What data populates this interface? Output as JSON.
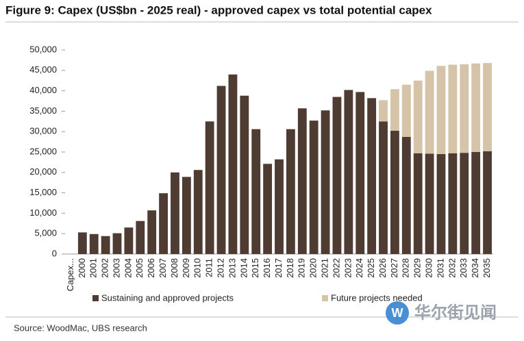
{
  "chart_data": {
    "type": "stacked-bar",
    "title": "Figure 9: Capex (US$bn - 2025 real) - approved capex vs total potential capex",
    "categories": [
      "Capex...",
      "2000",
      "2001",
      "2002",
      "2003",
      "2004",
      "2005",
      "2006",
      "2007",
      "2008",
      "2009",
      "2010",
      "2011",
      "2012",
      "2013",
      "2014",
      "2015",
      "2016",
      "2017",
      "2018",
      "2019",
      "2020",
      "2021",
      "2022",
      "2023",
      "2024",
      "2025",
      "2026",
      "2027",
      "2028",
      "2029",
      "2030",
      "2031",
      "2032",
      "2033",
      "2034",
      "2035"
    ],
    "series": [
      {
        "name": "Sustaining and approved projects",
        "color": "#4e3b31",
        "values": [
          null,
          5300,
          4900,
          4400,
          5100,
          6500,
          8100,
          10700,
          14900,
          20000,
          18900,
          20600,
          32500,
          41200,
          44000,
          38800,
          30600,
          22100,
          23200,
          30600,
          35700,
          32700,
          35200,
          38500,
          40200,
          39700,
          38200,
          32500,
          30200,
          28700,
          24700,
          24600,
          24500,
          24700,
          24800,
          25000,
          25200
        ]
      },
      {
        "name": "Future projects needed",
        "color": "#d5c4a7",
        "values": [
          null,
          null,
          null,
          null,
          null,
          null,
          null,
          null,
          null,
          null,
          null,
          null,
          null,
          null,
          null,
          null,
          null,
          null,
          null,
          null,
          null,
          null,
          null,
          null,
          null,
          null,
          null,
          5200,
          10200,
          12800,
          17800,
          20300,
          21600,
          21700,
          21700,
          21700,
          21600
        ]
      }
    ],
    "ylim": [
      0,
      50000
    ],
    "yticks": [
      0,
      {
        "value": 5000,
        "label": "5,000"
      },
      {
        "value": 10000,
        "label": "10,000"
      },
      {
        "value": 15000,
        "label": "15,000"
      },
      {
        "value": 20000,
        "label": "20,000"
      },
      {
        "value": 25000,
        "label": "25,000"
      },
      {
        "value": 30000,
        "label": "30,000"
      },
      {
        "value": 35000,
        "label": "35,000"
      },
      {
        "value": 40000,
        "label": "40,000"
      },
      {
        "value": 45000,
        "label": "45,000"
      },
      {
        "value": 50000,
        "label": "50,000"
      }
    ],
    "grid": false,
    "source": "Source: WoodMac, UBS research",
    "watermark": "华尔街见闻"
  }
}
